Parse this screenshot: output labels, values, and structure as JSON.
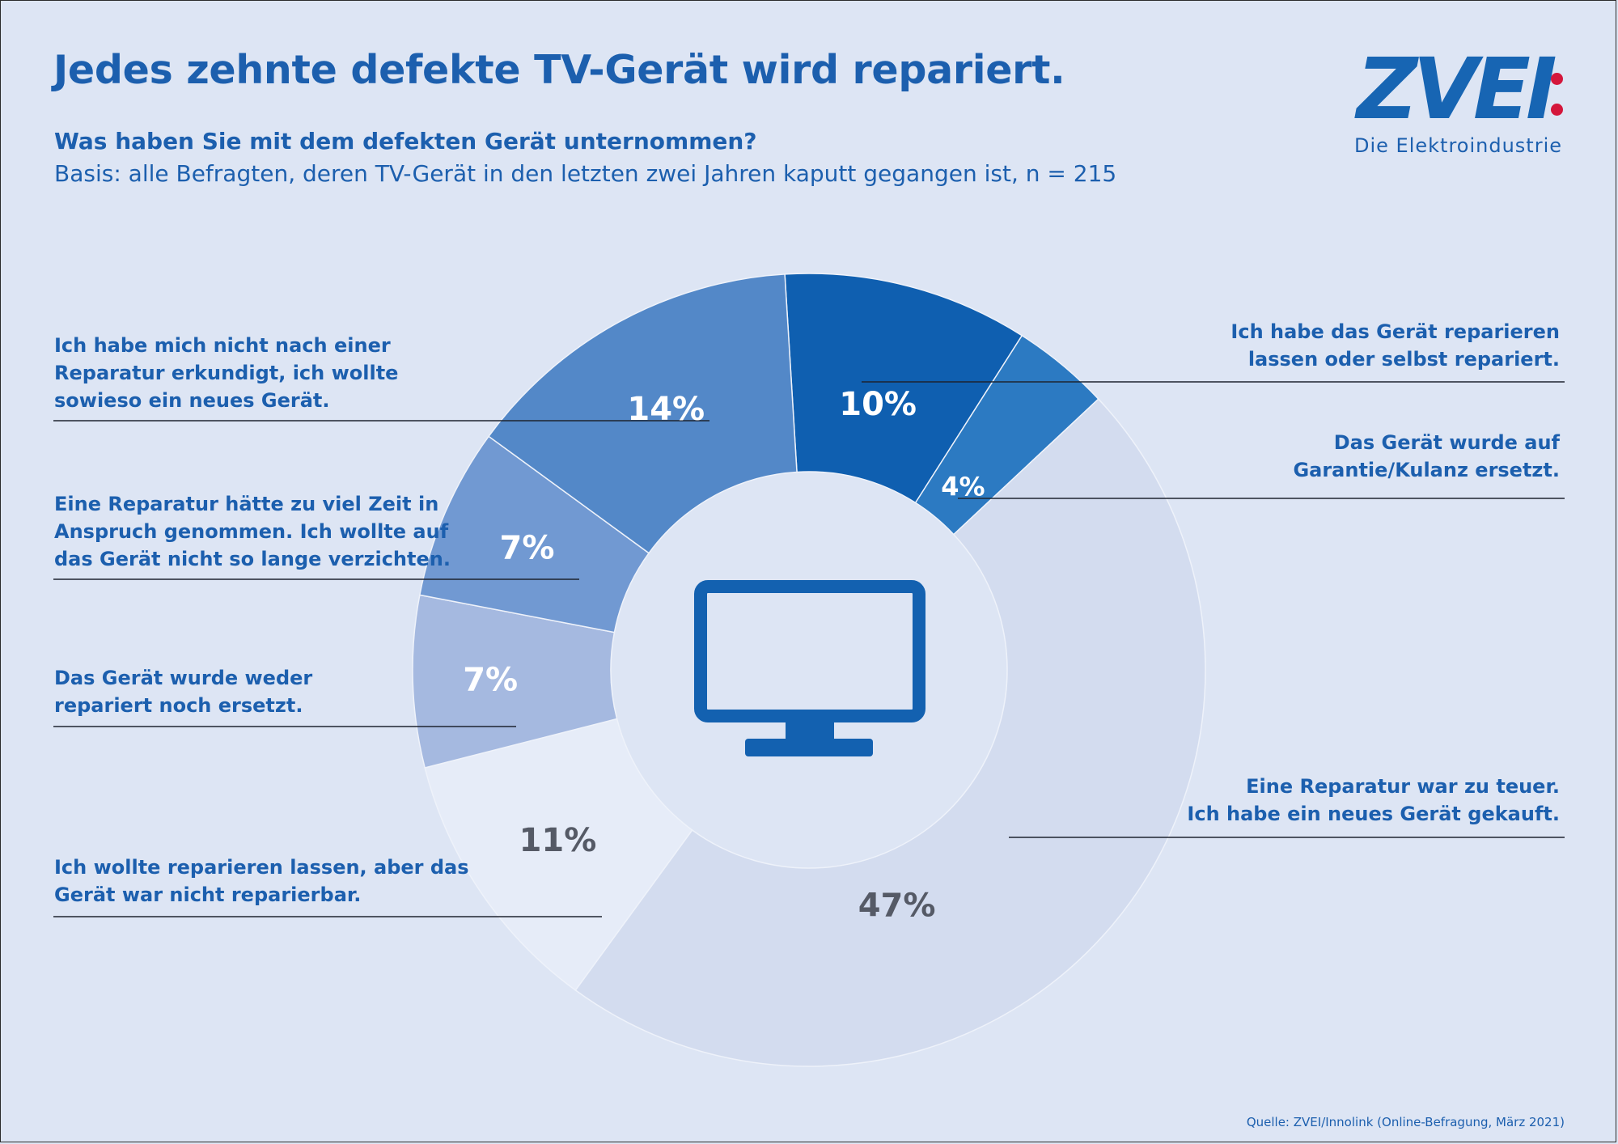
{
  "header": {
    "title": "Jedes zehnte defekte TV-Gerät wird repariert.",
    "question": "Was haben Sie mit dem defekten Gerät unternommen?",
    "basis": "Basis: alle Befragten, deren TV-Gerät in den letzten zwei Jahren kaputt gegangen ist, n = 215"
  },
  "logo": {
    "mark": "ZVEI",
    "tagline": "Die Elektroindustrie"
  },
  "footer": {
    "source": "Quelle: ZVEI/Innolink (Online-Befragung, März 2021)"
  },
  "icons": {
    "center": "tv-icon"
  },
  "colors": {
    "title": "#1c5fae",
    "background": "#dde5f4",
    "logo_accent": "#d4163b"
  },
  "chart_data": {
    "type": "pie",
    "variant": "donut",
    "title": "Was haben Sie mit dem defekten Gerät unternommen?",
    "unit": "%",
    "slices": [
      {
        "name": "repariert",
        "value": 10,
        "value_label": "10%",
        "color": "#0f5fb0",
        "label_color": "#ffffff",
        "label_lines": [
          "Ich habe das Gerät reparieren",
          "lassen oder selbst repariert."
        ]
      },
      {
        "name": "garantie",
        "value": 4,
        "value_label": "4%",
        "color": "#2c7ac2",
        "label_color": "#ffffff",
        "label_lines": [
          "Das Gerät wurde auf",
          "Garantie/Kulanz ersetzt."
        ]
      },
      {
        "name": "zu-teuer",
        "value": 47,
        "value_label": "47%",
        "color": "#d3dcef",
        "label_color": "#555a66",
        "label_lines": [
          "Eine Reparatur war zu teuer.",
          "Ich habe ein neues Gerät gekauft."
        ]
      },
      {
        "name": "nicht-reparierbar",
        "value": 11,
        "value_label": "11%",
        "color": "#e6ecf8",
        "label_color": "#555a66",
        "label_lines": [
          "Ich wollte reparieren lassen, aber das",
          "Gerät war nicht reparierbar."
        ]
      },
      {
        "name": "weder-noch",
        "value": 7,
        "value_label": "7%",
        "color": "#a5b9e0",
        "label_color": "#ffffff",
        "label_lines": [
          "Das Gerät wurde weder",
          "repariert noch ersetzt."
        ]
      },
      {
        "name": "zu-viel-zeit",
        "value": 7,
        "value_label": "7%",
        "color": "#7199d2",
        "label_color": "#ffffff",
        "label_lines": [
          "Eine Reparatur hätte zu viel Zeit in",
          "Anspruch genommen. Ich wollte auf",
          "das Gerät nicht so lange verzichten."
        ]
      },
      {
        "name": "nicht-erkundigt",
        "value": 14,
        "value_label": "14%",
        "color": "#5388c8",
        "label_color": "#ffffff",
        "label_lines": [
          "Ich habe mich nicht nach einer",
          "Reparatur erkundigt, ich wollte",
          "sowieso ein neues Gerät."
        ]
      }
    ]
  }
}
